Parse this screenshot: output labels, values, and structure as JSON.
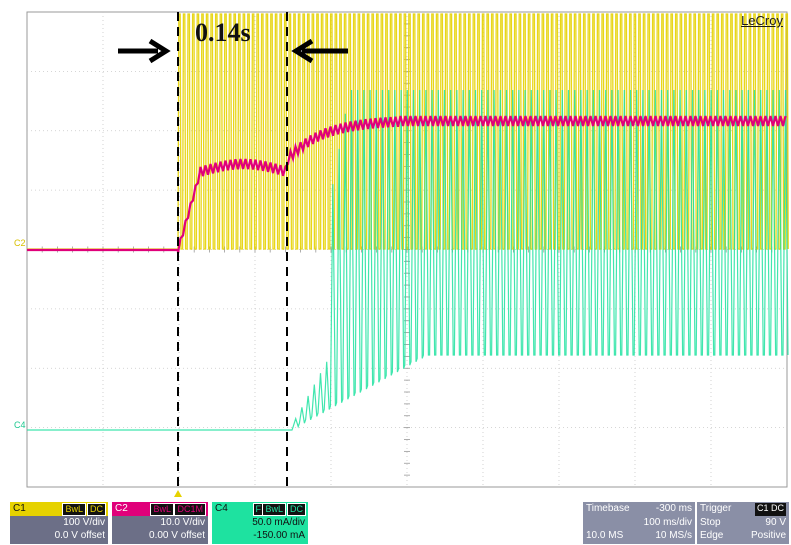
{
  "brand": "LeCroy",
  "annotation": {
    "interval": "0.14s"
  },
  "trace_labels": {
    "c2": "C2",
    "c4": "C4"
  },
  "channels": [
    {
      "name": "C1",
      "flags": [
        "BwL",
        "DC"
      ],
      "scale": "100 V/div",
      "offset": "0.0 V offset",
      "color": "#e6d200"
    },
    {
      "name": "C2",
      "flags": [
        "BwL",
        "DC1M"
      ],
      "scale": "10.0 V/div",
      "offset": "0.00 V offset",
      "color": "#e0007a"
    },
    {
      "name": "C4",
      "flags": [
        "F",
        "BwL",
        "DC"
      ],
      "scale": "50.0 mA/div",
      "offset": "-150.00 mA",
      "color": "#1ee2a0"
    }
  ],
  "timebase": {
    "label": "Timebase",
    "delay": "-300 ms",
    "scale": "100 ms/div",
    "samples": "10.0 MS",
    "rate": "10 MS/s"
  },
  "trigger": {
    "label": "Trigger",
    "source": "C1 DC",
    "mode": "Stop",
    "level": "90 V",
    "type": "Edge",
    "slope": "Positive"
  },
  "colors": {
    "c1": "#e6d200",
    "c2": "#e0007a",
    "c4": "#1ee2a0",
    "grid": "#c8c8c8",
    "panel": "#8a8fa6"
  },
  "icons": [
    "arrow-right-icon",
    "arrow-left-icon",
    "trigger-marker-icon"
  ]
}
